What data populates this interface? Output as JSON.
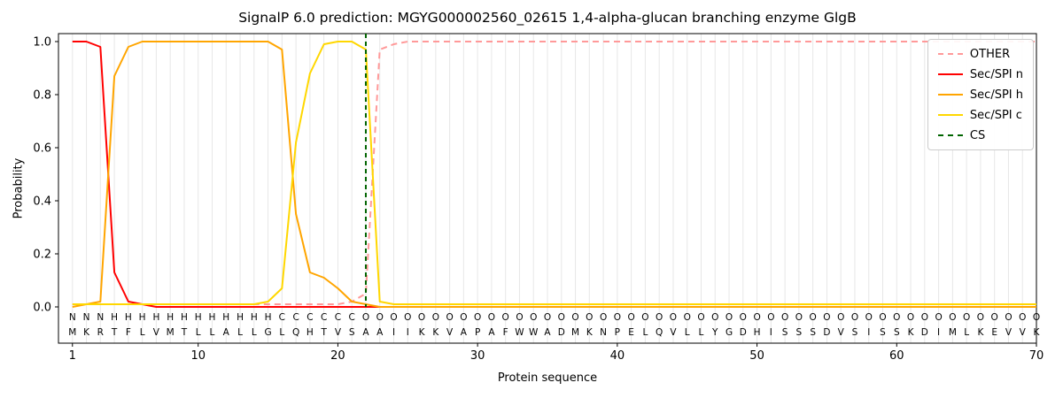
{
  "title": "SignalP 6.0 prediction: MGYG000002560_02615 1,4-alpha-glucan branching enzyme GlgB",
  "chart_data": {
    "type": "line",
    "title": "SignalP 6.0 prediction: MGYG000002560_02615 1,4-alpha-glucan branching enzyme GlgB",
    "xlabel": "Protein sequence",
    "ylabel": "Probability",
    "xlim": [
      0,
      70
    ],
    "ylim": [
      -0.14,
      1.03
    ],
    "x_ticks": [
      1,
      10,
      20,
      30,
      40,
      50,
      60,
      70
    ],
    "y_ticks": [
      0.0,
      0.2,
      0.4,
      0.6,
      0.8,
      1.0
    ],
    "grid": "vertical-only",
    "grid_color": "#e7e7e7",
    "legend_position": "upper right",
    "x_range_note": "positions 1 to 70, one value per residue",
    "series": [
      {
        "name": "OTHER",
        "color": "#ff9999",
        "dashed": true,
        "values": [
          0.01,
          0.01,
          0.01,
          0.01,
          0.01,
          0.01,
          0.01,
          0.01,
          0.01,
          0.01,
          0.01,
          0.01,
          0.01,
          0.01,
          0.01,
          0.01,
          0.01,
          0.01,
          0.01,
          0.01,
          0.02,
          0.05,
          0.97,
          0.99,
          1.0,
          1.0,
          1.0,
          1.0,
          1.0,
          1.0,
          1.0,
          1.0,
          1.0,
          1.0,
          1.0,
          1.0,
          1.0,
          1.0,
          1.0,
          1.0,
          1.0,
          1.0,
          1.0,
          1.0,
          1.0,
          1.0,
          1.0,
          1.0,
          1.0,
          1.0,
          1.0,
          1.0,
          1.0,
          1.0,
          1.0,
          1.0,
          1.0,
          1.0,
          1.0,
          1.0,
          1.0,
          1.0,
          1.0,
          1.0,
          1.0,
          1.0,
          1.0,
          1.0,
          1.0,
          1.0
        ]
      },
      {
        "name": "Sec/SPI n",
        "color": "#ff0000",
        "dashed": false,
        "values": [
          1.0,
          1.0,
          0.98,
          0.13,
          0.02,
          0.01,
          0.0,
          0.0,
          0.0,
          0.0,
          0.0,
          0.0,
          0.0,
          0.0,
          0.0,
          0.0,
          0.0,
          0.0,
          0.0,
          0.0,
          0.0,
          0.0,
          0.0,
          0.0,
          0.0,
          0.0,
          0.0,
          0.0,
          0.0,
          0.0,
          0.0,
          0.0,
          0.0,
          0.0,
          0.0,
          0.0,
          0.0,
          0.0,
          0.0,
          0.0,
          0.0,
          0.0,
          0.0,
          0.0,
          0.0,
          0.0,
          0.0,
          0.0,
          0.0,
          0.0,
          0.0,
          0.0,
          0.0,
          0.0,
          0.0,
          0.0,
          0.0,
          0.0,
          0.0,
          0.0,
          0.0,
          0.0,
          0.0,
          0.0,
          0.0,
          0.0,
          0.0,
          0.0,
          0.0,
          0.0
        ]
      },
      {
        "name": "Sec/SPI h",
        "color": "#ffa500",
        "dashed": false,
        "values": [
          0.0,
          0.01,
          0.02,
          0.87,
          0.98,
          1.0,
          1.0,
          1.0,
          1.0,
          1.0,
          1.0,
          1.0,
          1.0,
          1.0,
          1.0,
          0.97,
          0.35,
          0.13,
          0.11,
          0.07,
          0.02,
          0.01,
          0.0,
          0.0,
          0.0,
          0.0,
          0.0,
          0.0,
          0.0,
          0.0,
          0.0,
          0.0,
          0.0,
          0.0,
          0.0,
          0.0,
          0.0,
          0.0,
          0.0,
          0.0,
          0.0,
          0.0,
          0.0,
          0.0,
          0.0,
          0.0,
          0.0,
          0.0,
          0.0,
          0.0,
          0.0,
          0.0,
          0.0,
          0.0,
          0.0,
          0.0,
          0.0,
          0.0,
          0.0,
          0.0,
          0.0,
          0.0,
          0.0,
          0.0,
          0.0,
          0.0,
          0.0,
          0.0,
          0.0,
          0.0
        ]
      },
      {
        "name": "Sec/SPI c",
        "color": "#ffd700",
        "dashed": false,
        "values": [
          0.01,
          0.01,
          0.01,
          0.01,
          0.01,
          0.01,
          0.01,
          0.01,
          0.01,
          0.01,
          0.01,
          0.01,
          0.01,
          0.01,
          0.02,
          0.07,
          0.62,
          0.88,
          0.99,
          1.0,
          1.0,
          0.97,
          0.02,
          0.01,
          0.01,
          0.01,
          0.01,
          0.01,
          0.01,
          0.01,
          0.01,
          0.01,
          0.01,
          0.01,
          0.01,
          0.01,
          0.01,
          0.01,
          0.01,
          0.01,
          0.01,
          0.01,
          0.01,
          0.01,
          0.01,
          0.01,
          0.01,
          0.01,
          0.01,
          0.01,
          0.01,
          0.01,
          0.01,
          0.01,
          0.01,
          0.01,
          0.01,
          0.01,
          0.01,
          0.01,
          0.01,
          0.01,
          0.01,
          0.01,
          0.01,
          0.01,
          0.01,
          0.01,
          0.01,
          0.01
        ]
      }
    ],
    "cs_marker": {
      "name": "CS",
      "x": 22,
      "color": "#006400",
      "dashed": true
    },
    "region_labels": "NNNHHHHHHHHHHHHCCCCCCOOOOOOOOOOOOOOOOOOOOOOOOOOOOOOOOOOOOOOOOOOOOOOOOO",
    "region_colors": {
      "N": "#ff0000",
      "H": "#ffa500",
      "C": "#ffd700",
      "O": "#7f7f7f"
    },
    "sequence": "MKRTFLVMTLLALLGLQHTVSAAIIKKVAPAFWWADMKNPELQVLLYGDHISSSDVSISSKDIMLKEVVK"
  }
}
